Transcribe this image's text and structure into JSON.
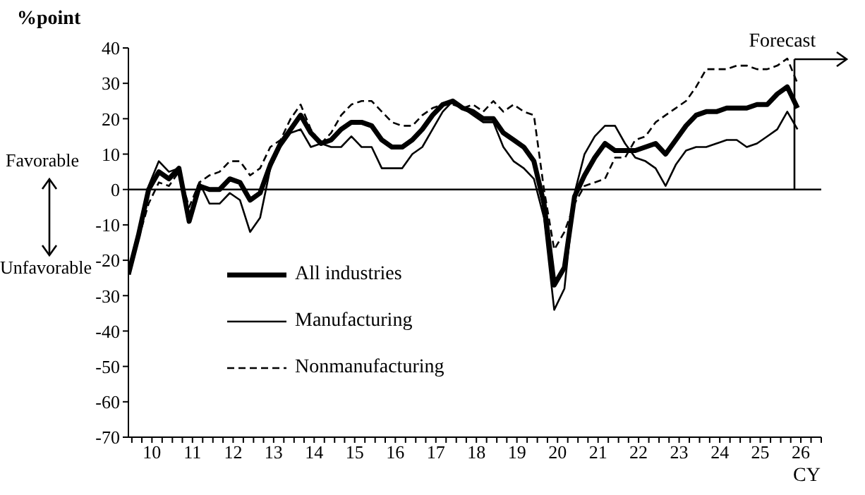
{
  "chart_data": {
    "type": "line",
    "ylabel": "%point",
    "xlabel": "CY",
    "x": [
      "2009-12",
      "2010-03",
      "2010-06",
      "2010-09",
      "2010-12",
      "2011-03",
      "2011-06",
      "2011-09",
      "2011-12",
      "2012-03",
      "2012-06",
      "2012-09",
      "2012-12",
      "2013-03",
      "2013-06",
      "2013-09",
      "2013-12",
      "2014-03",
      "2014-06",
      "2014-09",
      "2014-12",
      "2015-03",
      "2015-06",
      "2015-09",
      "2015-12",
      "2016-03",
      "2016-06",
      "2016-09",
      "2016-12",
      "2017-03",
      "2017-06",
      "2017-09",
      "2017-12",
      "2018-03",
      "2018-06",
      "2018-09",
      "2018-12",
      "2019-03",
      "2019-06",
      "2019-09",
      "2019-12",
      "2020-03",
      "2020-06",
      "2020-09",
      "2020-12",
      "2021-03",
      "2021-06",
      "2021-09",
      "2021-12",
      "2022-03",
      "2022-06",
      "2022-09",
      "2022-12",
      "2023-03",
      "2023-06",
      "2023-09",
      "2023-12",
      "2024-03",
      "2024-06",
      "2024-09",
      "2024-12",
      "2025-03",
      "2025-06",
      "2025-09",
      "2025-12",
      "2026-03",
      "2026-06"
    ],
    "series": [
      {
        "name": "All industries",
        "color": "#000000",
        "line_style": "solid",
        "values": [
          -24,
          -13,
          0,
          5,
          3,
          6,
          -9,
          1,
          0,
          0,
          3,
          2,
          -3,
          -1,
          7,
          13,
          17,
          21,
          16,
          13,
          14,
          17,
          19,
          19,
          18,
          14,
          12,
          12,
          14,
          17,
          21,
          24,
          25,
          23,
          22,
          20,
          20,
          16,
          14,
          12,
          8,
          -4,
          -27,
          -22,
          -2,
          4,
          9,
          13,
          11,
          11,
          11,
          12,
          13,
          10,
          14,
          18,
          21,
          22,
          22,
          23,
          23,
          23,
          24,
          24,
          27,
          29,
          23
        ]
      },
      {
        "name": "Manufacturing",
        "color": "#000000",
        "line_style": "solid",
        "values": [
          -24,
          -12,
          1,
          8,
          5,
          6,
          -9,
          2,
          -4,
          -4,
          -1,
          -3,
          -12,
          -8,
          6,
          12,
          16,
          17,
          12,
          13,
          12,
          12,
          15,
          12,
          12,
          6,
          6,
          6,
          10,
          12,
          17,
          22,
          25,
          23,
          21,
          19,
          19,
          12,
          8,
          6,
          3,
          -8,
          -34,
          -28,
          -1,
          10,
          15,
          18,
          18,
          13,
          9,
          8,
          6,
          1,
          7,
          11,
          12,
          12,
          13,
          14,
          14,
          12,
          13,
          15,
          17,
          22,
          17
        ]
      },
      {
        "name": "Nonmanufacturing",
        "color": "#000000",
        "line_style": "dashed",
        "values": [
          -23,
          -14,
          -4,
          2,
          1,
          5,
          -5,
          2,
          4,
          5,
          8,
          8,
          4,
          6,
          12,
          14,
          20,
          24,
          17,
          13,
          16,
          21,
          24,
          25,
          25,
          22,
          19,
          18,
          18,
          21,
          23,
          24,
          24,
          23,
          24,
          22,
          25,
          22,
          24,
          22,
          21,
          0,
          -17,
          -12,
          -4,
          1,
          2,
          3,
          9,
          9,
          14,
          15,
          19,
          21,
          23,
          25,
          29,
          34,
          34,
          34,
          35,
          35,
          34,
          34,
          35,
          37,
          30
        ]
      }
    ],
    "xlim": [
      "2009-12",
      "2027-01"
    ],
    "xticks": [
      {
        "value": "2010-01",
        "label": null
      },
      {
        "value": "2010-04",
        "label": null
      },
      {
        "value": "2010-07",
        "label": "10"
      },
      {
        "value": "2010-10",
        "label": null
      },
      {
        "value": "2011-01",
        "label": null
      },
      {
        "value": "2011-04",
        "label": null
      },
      {
        "value": "2011-07",
        "label": "11"
      },
      {
        "value": "2011-10",
        "label": null
      },
      {
        "value": "2012-01",
        "label": null
      },
      {
        "value": "2012-04",
        "label": null
      },
      {
        "value": "2012-07",
        "label": "12"
      },
      {
        "value": "2012-10",
        "label": null
      },
      {
        "value": "2013-01",
        "label": null
      },
      {
        "value": "2013-04",
        "label": null
      },
      {
        "value": "2013-07",
        "label": "13"
      },
      {
        "value": "2013-10",
        "label": null
      },
      {
        "value": "2014-01",
        "label": null
      },
      {
        "value": "2014-04",
        "label": null
      },
      {
        "value": "2014-07",
        "label": "14"
      },
      {
        "value": "2014-10",
        "label": null
      },
      {
        "value": "2015-01",
        "label": null
      },
      {
        "value": "2015-04",
        "label": null
      },
      {
        "value": "2015-07",
        "label": "15"
      },
      {
        "value": "2015-10",
        "label": null
      },
      {
        "value": "2016-01",
        "label": null
      },
      {
        "value": "2016-04",
        "label": null
      },
      {
        "value": "2016-07",
        "label": "16"
      },
      {
        "value": "2016-10",
        "label": null
      },
      {
        "value": "2017-01",
        "label": null
      },
      {
        "value": "2017-04",
        "label": null
      },
      {
        "value": "2017-07",
        "label": "17"
      },
      {
        "value": "2017-10",
        "label": null
      },
      {
        "value": "2018-01",
        "label": null
      },
      {
        "value": "2018-04",
        "label": null
      },
      {
        "value": "2018-07",
        "label": "18"
      },
      {
        "value": "2018-10",
        "label": null
      },
      {
        "value": "2019-01",
        "label": null
      },
      {
        "value": "2019-04",
        "label": null
      },
      {
        "value": "2019-07",
        "label": "19"
      },
      {
        "value": "2019-10",
        "label": null
      },
      {
        "value": "2020-01",
        "label": null
      },
      {
        "value": "2020-04",
        "label": null
      },
      {
        "value": "2020-07",
        "label": "20"
      },
      {
        "value": "2020-10",
        "label": null
      },
      {
        "value": "2021-01",
        "label": null
      },
      {
        "value": "2021-04",
        "label": null
      },
      {
        "value": "2021-07",
        "label": "21"
      },
      {
        "value": "2021-10",
        "label": null
      },
      {
        "value": "2022-01",
        "label": null
      },
      {
        "value": "2022-04",
        "label": null
      },
      {
        "value": "2022-07",
        "label": "22"
      },
      {
        "value": "2022-10",
        "label": null
      },
      {
        "value": "2023-01",
        "label": null
      },
      {
        "value": "2023-04",
        "label": null
      },
      {
        "value": "2023-07",
        "label": "23"
      },
      {
        "value": "2023-10",
        "label": null
      },
      {
        "value": "2024-01",
        "label": null
      },
      {
        "value": "2024-04",
        "label": null
      },
      {
        "value": "2024-07",
        "label": "24"
      },
      {
        "value": "2024-10",
        "label": null
      },
      {
        "value": "2025-01",
        "label": null
      },
      {
        "value": "2025-04",
        "label": null
      },
      {
        "value": "2025-07",
        "label": "25"
      },
      {
        "value": "2025-10",
        "label": null
      },
      {
        "value": "2026-01",
        "label": null
      },
      {
        "value": "2026-04",
        "label": null
      },
      {
        "value": "2026-07",
        "label": "26"
      },
      {
        "value": "2026-10",
        "label": null
      },
      {
        "value": "2027-01",
        "label": null
      }
    ],
    "ylim": [
      -70,
      40
    ],
    "yticks": [
      -70,
      -60,
      -50,
      -40,
      -30,
      -20,
      -10,
      0,
      10,
      20,
      30,
      40
    ],
    "ref_lines": [
      {
        "axis": "y",
        "value": 0,
        "color": "#000000"
      }
    ],
    "annotations": [
      "Favorable",
      "Unfavorable",
      {
        "text": "Forecast",
        "x": "2026-05",
        "y": 37
      }
    ],
    "legend": "bottom left",
    "marker": "none"
  }
}
